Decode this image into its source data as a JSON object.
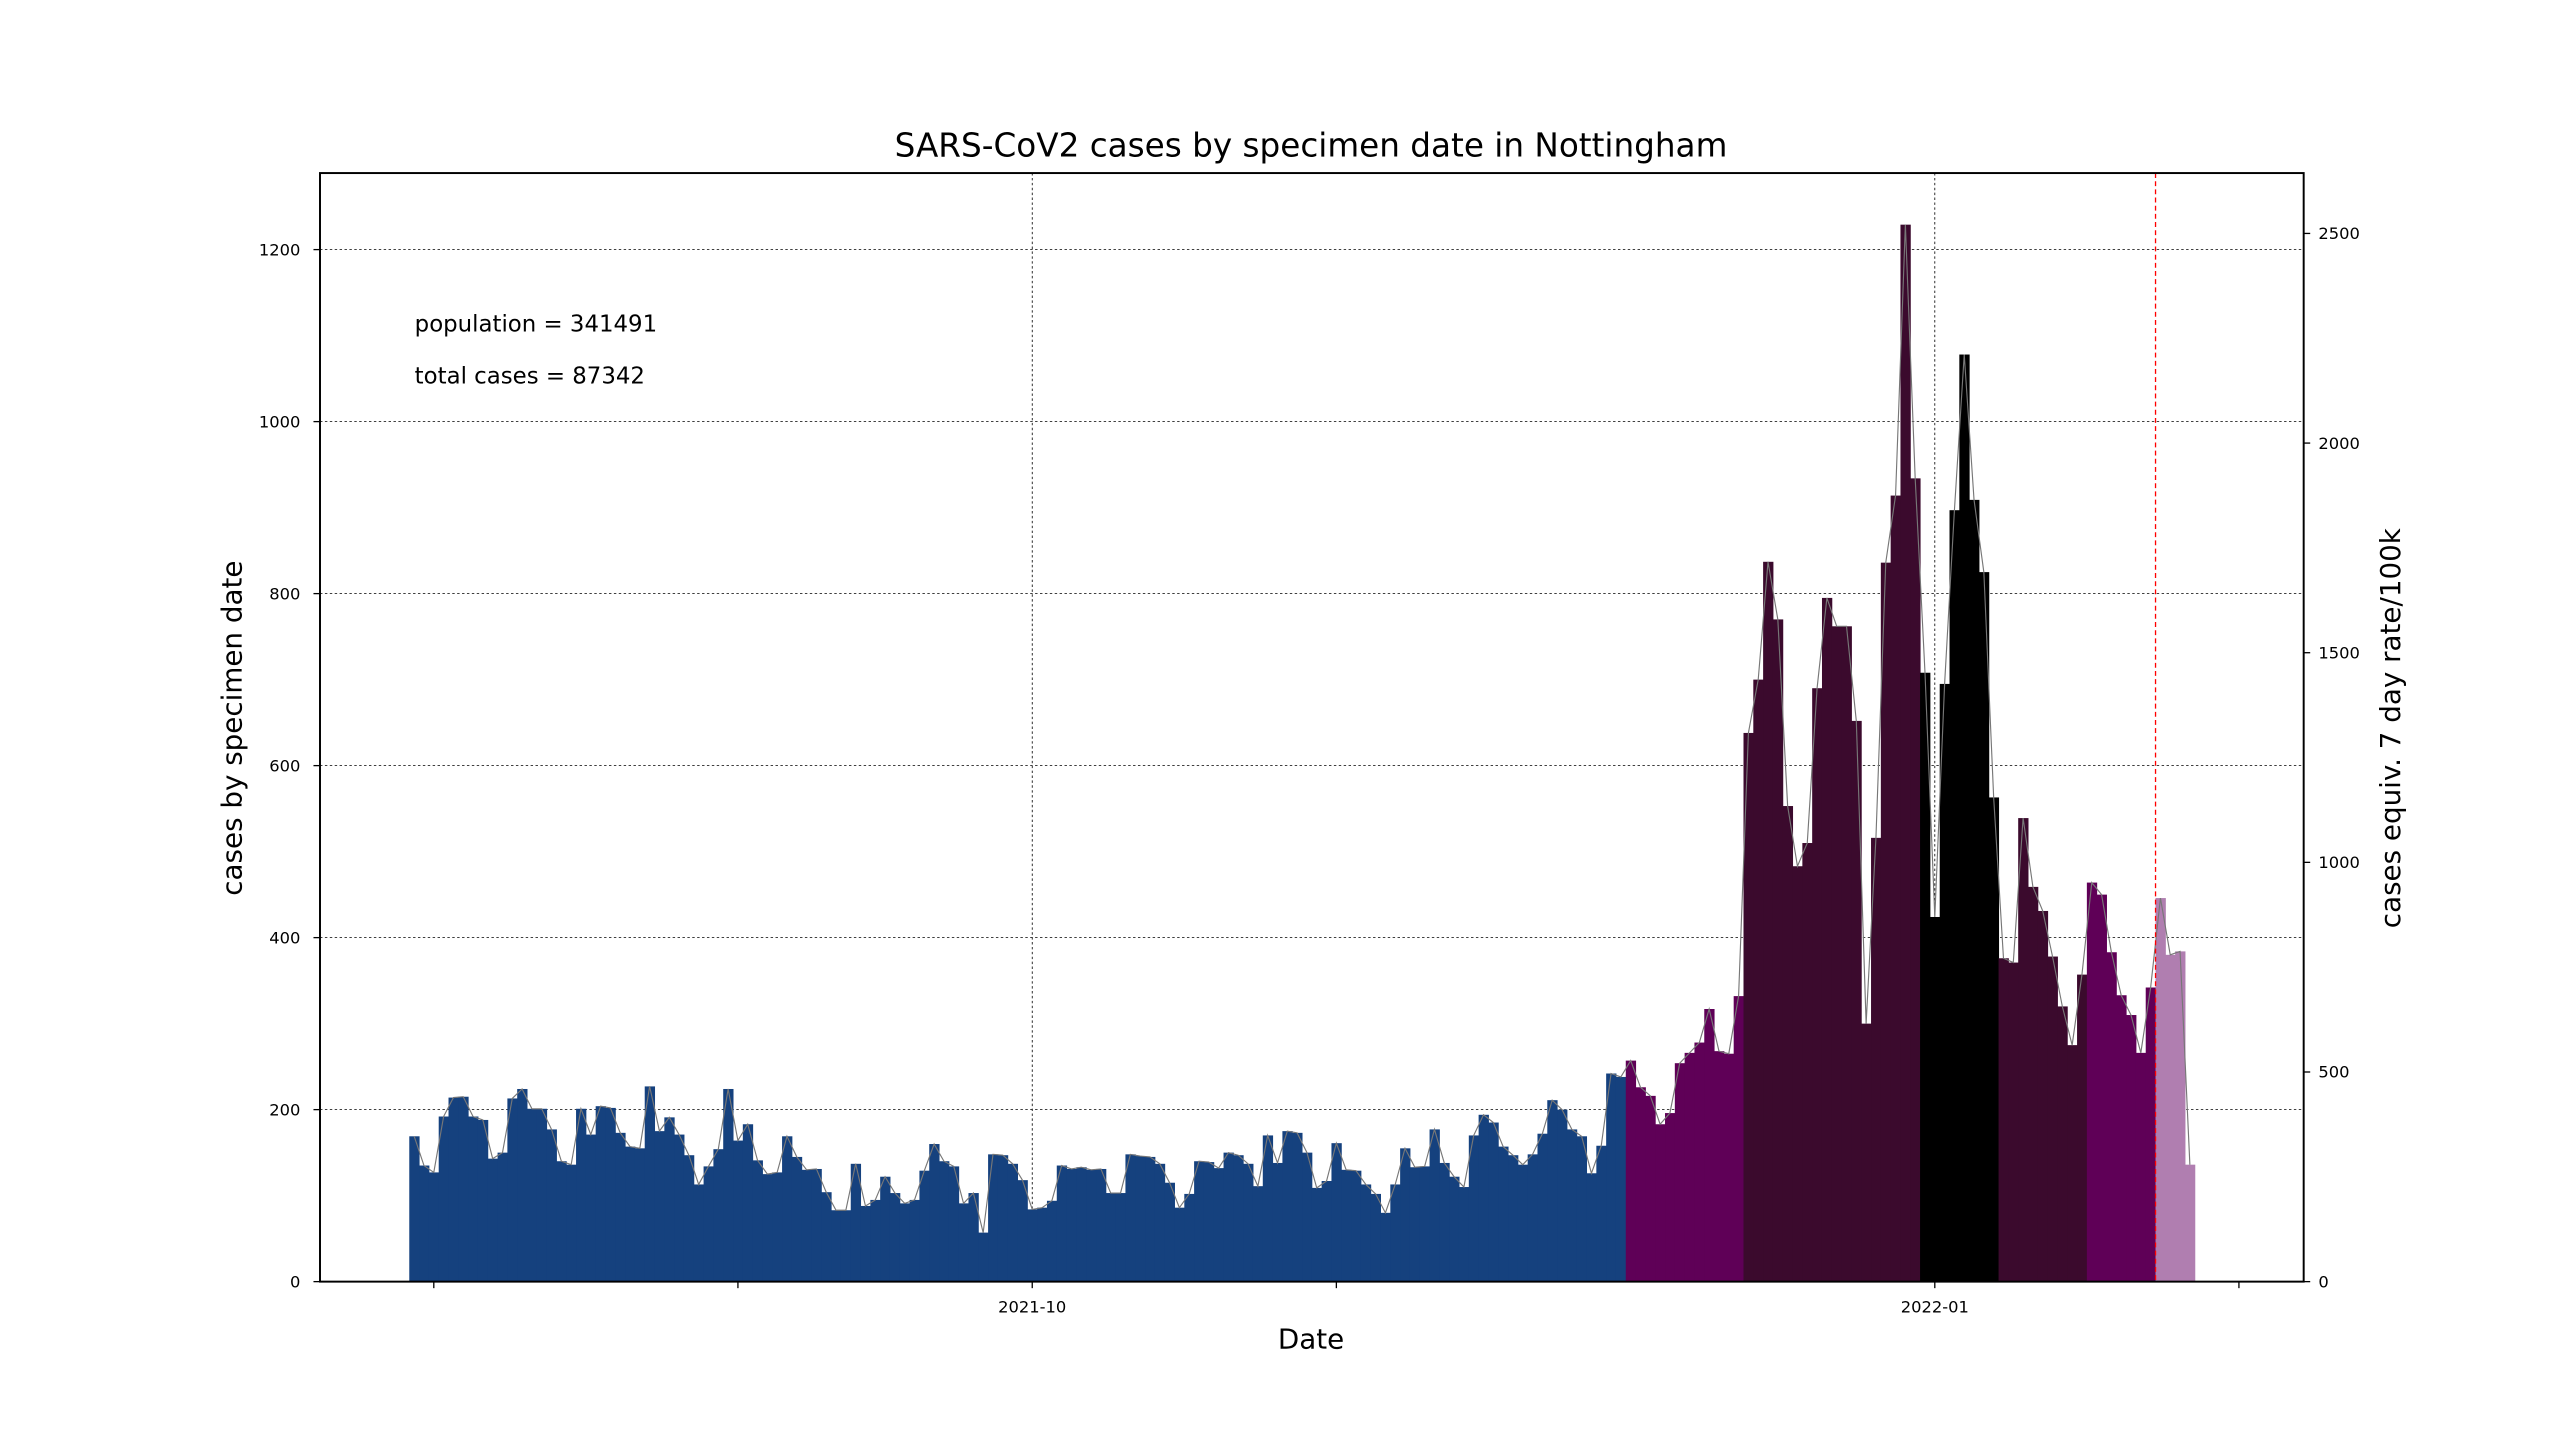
{
  "chart_data": {
    "type": "bar",
    "title": "SARS-CoV2 cases by specimen date in Nottingham",
    "xlabel": "Date",
    "ylabel": "cases by specimen date",
    "y2label": "cases equiv. 7 day rate/100k",
    "annotations": [
      "population = 341491",
      "total cases = 87342"
    ],
    "categories": [
      null,
      null,
      null,
      null,
      null,
      null,
      null,
      null,
      null,
      null,
      null,
      null,
      null,
      null,
      null,
      null,
      null,
      null,
      null,
      null,
      null,
      null,
      null,
      null,
      null,
      null,
      null,
      null,
      null,
      null,
      null,
      null,
      null,
      null,
      null,
      null,
      null,
      null,
      null,
      null,
      null,
      null,
      null,
      null,
      null,
      null,
      null,
      null,
      null,
      null,
      null,
      null,
      null,
      null,
      null,
      null,
      null,
      null,
      null,
      null,
      null,
      null,
      null,
      null,
      null,
      null,
      null,
      null,
      null,
      null,
      null,
      null,
      null,
      null,
      null,
      null,
      null,
      null,
      null,
      null,
      null,
      null,
      null,
      null,
      null,
      null,
      null,
      null,
      null,
      null,
      null,
      null,
      null,
      null,
      null,
      null,
      null,
      null,
      null,
      null,
      null,
      null,
      null,
      null,
      null,
      null,
      null,
      null,
      null,
      null,
      null,
      null,
      null,
      null,
      null,
      null,
      null,
      null,
      null,
      null,
      null,
      null,
      null,
      null,
      null,
      null,
      null,
      null,
      null,
      null,
      null,
      null,
      null,
      null,
      null,
      null,
      null,
      null,
      null,
      null,
      null,
      null,
      null,
      null,
      null,
      null,
      null,
      null,
      null,
      null,
      null,
      null,
      null,
      null,
      null,
      null,
      null,
      null,
      null,
      null,
      null,
      null,
      null,
      null,
      null,
      null,
      null,
      null,
      null,
      null,
      null,
      null,
      null,
      null,
      null,
      null,
      null,
      null,
      null,
      null,
      null,
      null
    ],
    "values": [
      169,
      135,
      127,
      192,
      214,
      215,
      192,
      188,
      143,
      150,
      213,
      224,
      201,
      201,
      177,
      140,
      136,
      201,
      171,
      204,
      202,
      173,
      157,
      155,
      227,
      175,
      191,
      171,
      147,
      113,
      134,
      154,
      224,
      164,
      183,
      141,
      125,
      127,
      169,
      145,
      130,
      131,
      104,
      83,
      83,
      137,
      88,
      95,
      122,
      103,
      91,
      95,
      129,
      160,
      140,
      134,
      91,
      103,
      57,
      148,
      147,
      137,
      118,
      84,
      86,
      94,
      135,
      131,
      133,
      130,
      131,
      103,
      103,
      148,
      146,
      145,
      137,
      115,
      86,
      102,
      140,
      139,
      132,
      150,
      147,
      137,
      111,
      170,
      138,
      175,
      173,
      150,
      109,
      117,
      161,
      130,
      129,
      113,
      102,
      80,
      113,
      155,
      133,
      134,
      177,
      138,
      122,
      110,
      170,
      194,
      185,
      157,
      147,
      136,
      148,
      172,
      211,
      200,
      177,
      169,
      126,
      158,
      242,
      238,
      257,
      226,
      216,
      183,
      196,
      254,
      266,
      278,
      317,
      268,
      265,
      332,
      638,
      700,
      837,
      770,
      553,
      483,
      510,
      690,
      795,
      762,
      762,
      652,
      300,
      516,
      836,
      914,
      1229,
      934,
      708,
      424,
      695,
      897,
      1078,
      909,
      825,
      563,
      376,
      371,
      539,
      459,
      431,
      378,
      320,
      275,
      357,
      464,
      450,
      383,
      333,
      310,
      266,
      342,
      446,
      380,
      384,
      136
    ],
    "colors": [
      "#15417e",
      "#15417e",
      "#15417e",
      "#15417e",
      "#15417e",
      "#15417e",
      "#15417e",
      "#15417e",
      "#15417e",
      "#15417e",
      "#15417e",
      "#15417e",
      "#15417e",
      "#15417e",
      "#15417e",
      "#15417e",
      "#15417e",
      "#15417e",
      "#15417e",
      "#15417e",
      "#15417e",
      "#15417e",
      "#15417e",
      "#15417e",
      "#15417e",
      "#15417e",
      "#15417e",
      "#15417e",
      "#15417e",
      "#15417e",
      "#15417e",
      "#15417e",
      "#15417e",
      "#15417e",
      "#15417e",
      "#15417e",
      "#15417e",
      "#15417e",
      "#15417e",
      "#15417e",
      "#15417e",
      "#15417e",
      "#15417e",
      "#15417e",
      "#15417e",
      "#15417e",
      "#15417e",
      "#15417e",
      "#15417e",
      "#15417e",
      "#15417e",
      "#15417e",
      "#15417e",
      "#15417e",
      "#15417e",
      "#15417e",
      "#15417e",
      "#15417e",
      "#15417e",
      "#15417e",
      "#15417e",
      "#15417e",
      "#15417e",
      "#15417e",
      "#15417e",
      "#15417e",
      "#15417e",
      "#15417e",
      "#15417e",
      "#15417e",
      "#15417e",
      "#15417e",
      "#15417e",
      "#15417e",
      "#15417e",
      "#15417e",
      "#15417e",
      "#15417e",
      "#15417e",
      "#15417e",
      "#15417e",
      "#15417e",
      "#15417e",
      "#15417e",
      "#15417e",
      "#15417e",
      "#15417e",
      "#15417e",
      "#15417e",
      "#15417e",
      "#15417e",
      "#15417e",
      "#15417e",
      "#15417e",
      "#15417e",
      "#15417e",
      "#15417e",
      "#15417e",
      "#15417e",
      "#15417e",
      "#15417e",
      "#15417e",
      "#15417e",
      "#15417e",
      "#15417e",
      "#15417e",
      "#15417e",
      "#15417e",
      "#15417e",
      "#15417e",
      "#15417e",
      "#15417e",
      "#15417e",
      "#15417e",
      "#15417e",
      "#15417e",
      "#15417e",
      "#15417e",
      "#15417e",
      "#15417e",
      "#15417e",
      "#15417e",
      "#15417e",
      "#15417e",
      "#5f0057",
      "#5f0057",
      "#5f0057",
      "#5f0057",
      "#5f0057",
      "#5f0057",
      "#5f0057",
      "#5f0057",
      "#5f0057",
      "#5f0057",
      "#5f0057",
      "#5f0057",
      "#3b0a2d",
      "#3b0a2d",
      "#3b0a2d",
      "#3b0a2d",
      "#3b0a2d",
      "#3b0a2d",
      "#3b0a2d",
      "#3b0a2d",
      "#3b0a2d",
      "#3b0a2d",
      "#3b0a2d",
      "#3b0a2d",
      "#3b0a2d",
      "#3b0a2d",
      "#3b0a2d",
      "#3b0a2d",
      "#3b0a2d",
      "#3b0a2d",
      "#000000",
      "#000000",
      "#000000",
      "#000000",
      "#000000",
      "#000000",
      "#000000",
      "#000000",
      "#3b0a2d",
      "#3b0a2d",
      "#3b0a2d",
      "#3b0a2d",
      "#3b0a2d",
      "#3b0a2d",
      "#3b0a2d",
      "#3b0a2d",
      "#3b0a2d",
      "#5f0057",
      "#5f0057",
      "#5f0057",
      "#5f0057",
      "#5f0057",
      "#5f0057",
      "#5f0057",
      "#b07eb0",
      "#b07eb0",
      "#b07eb0",
      "#b07eb0"
    ],
    "line_color": "#777777",
    "xlim": [
      -9.6,
      192.6
    ],
    "xticks": [
      {
        "value": 63,
        "label": "2021-10"
      },
      {
        "value": 155,
        "label": "2022-01"
      }
    ],
    "xticks_unlabeled": [
      2,
      33,
      94,
      186
    ],
    "ylim": [
      0,
      1289
    ],
    "yticks": [
      0,
      200,
      400,
      600,
      800,
      1000,
      1200
    ],
    "y2lim": [
      0,
      2644
    ],
    "y2ticks": [
      0,
      500,
      1000,
      1500,
      2000,
      2500
    ],
    "vline": 177.5,
    "vline_color": "#ff0000",
    "grid": true
  }
}
